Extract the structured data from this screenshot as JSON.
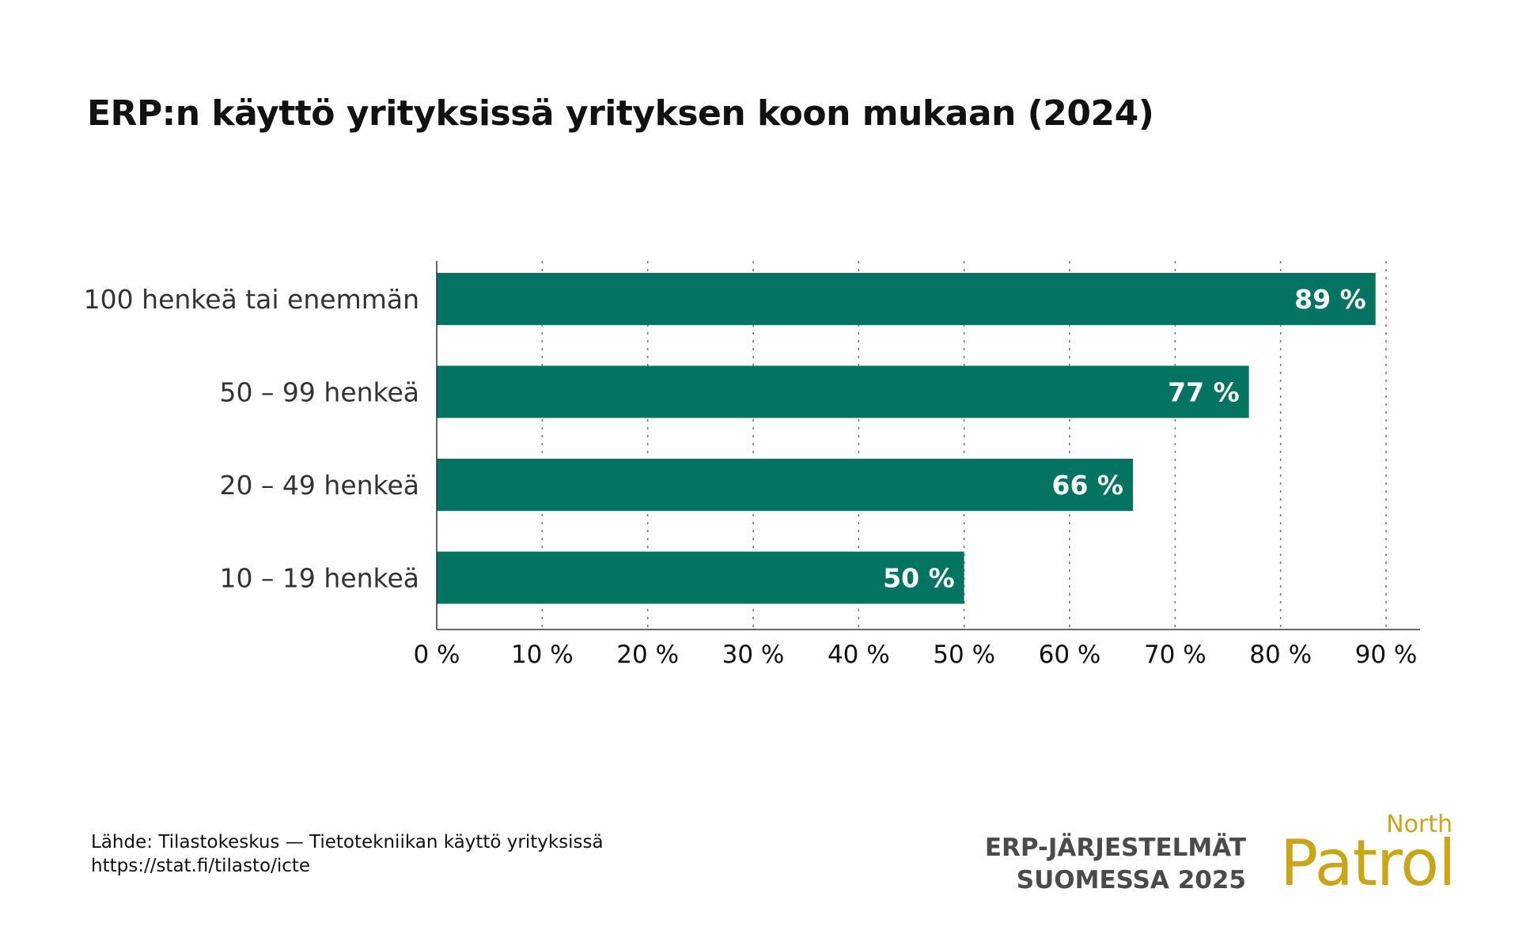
{
  "chart_data": {
    "type": "bar",
    "orientation": "horizontal",
    "title": "ERP:n käyttö yrityksissä yrityksen koon mukaan (2024)",
    "categories": [
      "100 henkeä tai enemmän",
      "50 – 99 henkeä",
      "20 – 49 henkeä",
      "10 – 19 henkeä"
    ],
    "values": [
      89,
      77,
      66,
      50
    ],
    "value_labels": [
      "89 %",
      "77 %",
      "66 %",
      "50 %"
    ],
    "xlim": [
      0,
      90
    ],
    "x_ticks": [
      0,
      10,
      20,
      30,
      40,
      50,
      60,
      70,
      80,
      90
    ],
    "x_tick_labels": [
      "0 %",
      "10 %",
      "20 %",
      "30 %",
      "40 %",
      "50 %",
      "60 %",
      "70 %",
      "80 %",
      "90 %"
    ],
    "grid": "vertical dotted",
    "bar_color": "#037462",
    "xlabel": "",
    "ylabel": ""
  },
  "footer": {
    "source_line1": "Lähde: Tilastokeskus — Tietotekniikan käyttö yrityksissä",
    "source_line2": "https://stat.fi/tilasto/icte",
    "brand_line1": "ERP-JÄRJESTELMÄT",
    "brand_line2": "SUOMESSA 2025",
    "logo_small": "North",
    "logo_large": "Patrol"
  },
  "colors": {
    "accent": "#037462",
    "logo": "#c9a616",
    "text": "#111111",
    "brand_text": "#4a4a4a"
  }
}
